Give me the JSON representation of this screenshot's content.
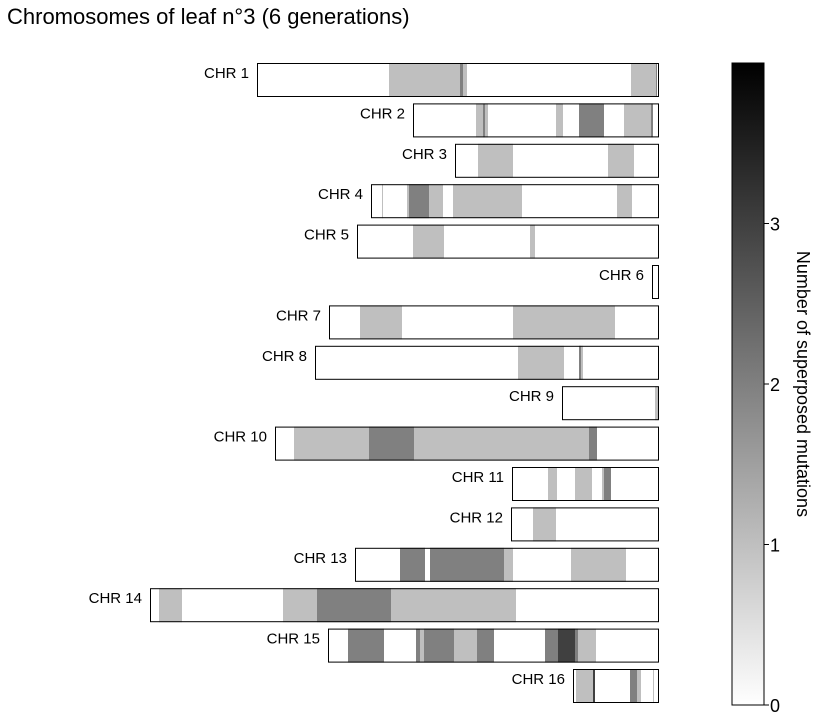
{
  "chart_data": {
    "type": "heatmap",
    "title": "Chromosomes of leaf n°3 (6 generations)",
    "colorbar": {
      "label": "Number of superposed mutations",
      "ticks": [
        "0",
        "1",
        "2",
        "3"
      ],
      "range": [
        0,
        4
      ]
    },
    "chromosomes": [
      {
        "name": "CHR 1",
        "length": 402,
        "segments": [
          {
            "start": 132,
            "end": 203,
            "value": 1
          },
          {
            "start": 203,
            "end": 206,
            "value": 2
          },
          {
            "start": 206,
            "end": 210,
            "value": 1
          },
          {
            "start": 374,
            "end": 399,
            "value": 1
          },
          {
            "start": 399,
            "end": 400,
            "value": 2
          }
        ]
      },
      {
        "name": "CHR 2",
        "length": 246,
        "segments": [
          {
            "start": 63,
            "end": 70,
            "value": 1
          },
          {
            "start": 70,
            "end": 72,
            "value": 2
          },
          {
            "start": 72,
            "end": 75,
            "value": 1
          },
          {
            "start": 143,
            "end": 150,
            "value": 1
          },
          {
            "start": 166,
            "end": 191,
            "value": 2
          },
          {
            "start": 211,
            "end": 238,
            "value": 1
          },
          {
            "start": 238,
            "end": 240,
            "value": 2
          }
        ]
      },
      {
        "name": "CHR 3",
        "length": 204,
        "segments": [
          {
            "start": 23,
            "end": 58,
            "value": 1
          },
          {
            "start": 153,
            "end": 179,
            "value": 1
          }
        ]
      },
      {
        "name": "CHR 4",
        "length": 288,
        "segments": [
          {
            "start": 11,
            "end": 12,
            "value": 1
          },
          {
            "start": 36,
            "end": 38,
            "value": 1
          },
          {
            "start": 38,
            "end": 58,
            "value": 2
          },
          {
            "start": 58,
            "end": 72,
            "value": 1
          },
          {
            "start": 82,
            "end": 151,
            "value": 1
          },
          {
            "start": 246,
            "end": 261,
            "value": 1
          }
        ]
      },
      {
        "name": "CHR 5",
        "length": 302,
        "segments": [
          {
            "start": 56,
            "end": 87,
            "value": 1
          },
          {
            "start": 173,
            "end": 178,
            "value": 1
          }
        ]
      },
      {
        "name": "CHR 6",
        "length": 7,
        "segments": []
      },
      {
        "name": "CHR 7",
        "length": 330,
        "segments": [
          {
            "start": 31,
            "end": 73,
            "value": 1
          },
          {
            "start": 184,
            "end": 286,
            "value": 1
          }
        ]
      },
      {
        "name": "CHR 8",
        "length": 344,
        "segments": [
          {
            "start": 203,
            "end": 249,
            "value": 1
          },
          {
            "start": 264,
            "end": 266,
            "value": 2
          },
          {
            "start": 266,
            "end": 268,
            "value": 1
          }
        ]
      },
      {
        "name": "CHR 9",
        "length": 97,
        "segments": [
          {
            "start": 93,
            "end": 96,
            "value": 1
          }
        ]
      },
      {
        "name": "CHR 10",
        "length": 384,
        "segments": [
          {
            "start": 19,
            "end": 94,
            "value": 1
          },
          {
            "start": 94,
            "end": 139,
            "value": 2
          },
          {
            "start": 139,
            "end": 314,
            "value": 1
          },
          {
            "start": 314,
            "end": 322,
            "value": 2
          }
        ]
      },
      {
        "name": "CHR 11",
        "length": 147,
        "segments": [
          {
            "start": 36,
            "end": 45,
            "value": 1
          },
          {
            "start": 63,
            "end": 80,
            "value": 1
          },
          {
            "start": 90,
            "end": 92,
            "value": 1
          },
          {
            "start": 92,
            "end": 99,
            "value": 2
          }
        ]
      },
      {
        "name": "CHR 12",
        "length": 148,
        "segments": [
          {
            "start": 22,
            "end": 45,
            "value": 1
          }
        ]
      },
      {
        "name": "CHR 13",
        "length": 304,
        "segments": [
          {
            "start": 45,
            "end": 70,
            "value": 2
          },
          {
            "start": 75,
            "end": 149,
            "value": 2
          },
          {
            "start": 149,
            "end": 158,
            "value": 1
          },
          {
            "start": 216,
            "end": 271,
            "value": 1
          }
        ]
      },
      {
        "name": "CHR 14",
        "length": 509,
        "segments": [
          {
            "start": 9,
            "end": 32,
            "value": 1
          },
          {
            "start": 133,
            "end": 167,
            "value": 1
          },
          {
            "start": 167,
            "end": 241,
            "value": 2
          },
          {
            "start": 241,
            "end": 366,
            "value": 1
          }
        ]
      },
      {
        "name": "CHR 15",
        "length": 331,
        "segments": [
          {
            "start": 20,
            "end": 56,
            "value": 2
          },
          {
            "start": 88,
            "end": 92,
            "value": 2
          },
          {
            "start": 92,
            "end": 96,
            "value": 1
          },
          {
            "start": 96,
            "end": 126,
            "value": 2
          },
          {
            "start": 126,
            "end": 149,
            "value": 1
          },
          {
            "start": 149,
            "end": 166,
            "value": 2
          },
          {
            "start": 217,
            "end": 230,
            "value": 2
          },
          {
            "start": 230,
            "end": 247,
            "value": 3
          },
          {
            "start": 247,
            "end": 250,
            "value": 2
          },
          {
            "start": 250,
            "end": 268,
            "value": 1
          }
        ]
      },
      {
        "name": "CHR 16",
        "length": 86,
        "segments": [
          {
            "start": 3,
            "end": 20,
            "value": 1
          },
          {
            "start": 20,
            "end": 22,
            "value": 3
          },
          {
            "start": 57,
            "end": 64,
            "value": 2
          },
          {
            "start": 64,
            "end": 68,
            "value": 1
          },
          {
            "start": 80,
            "end": 81,
            "value": 1
          }
        ]
      }
    ]
  }
}
